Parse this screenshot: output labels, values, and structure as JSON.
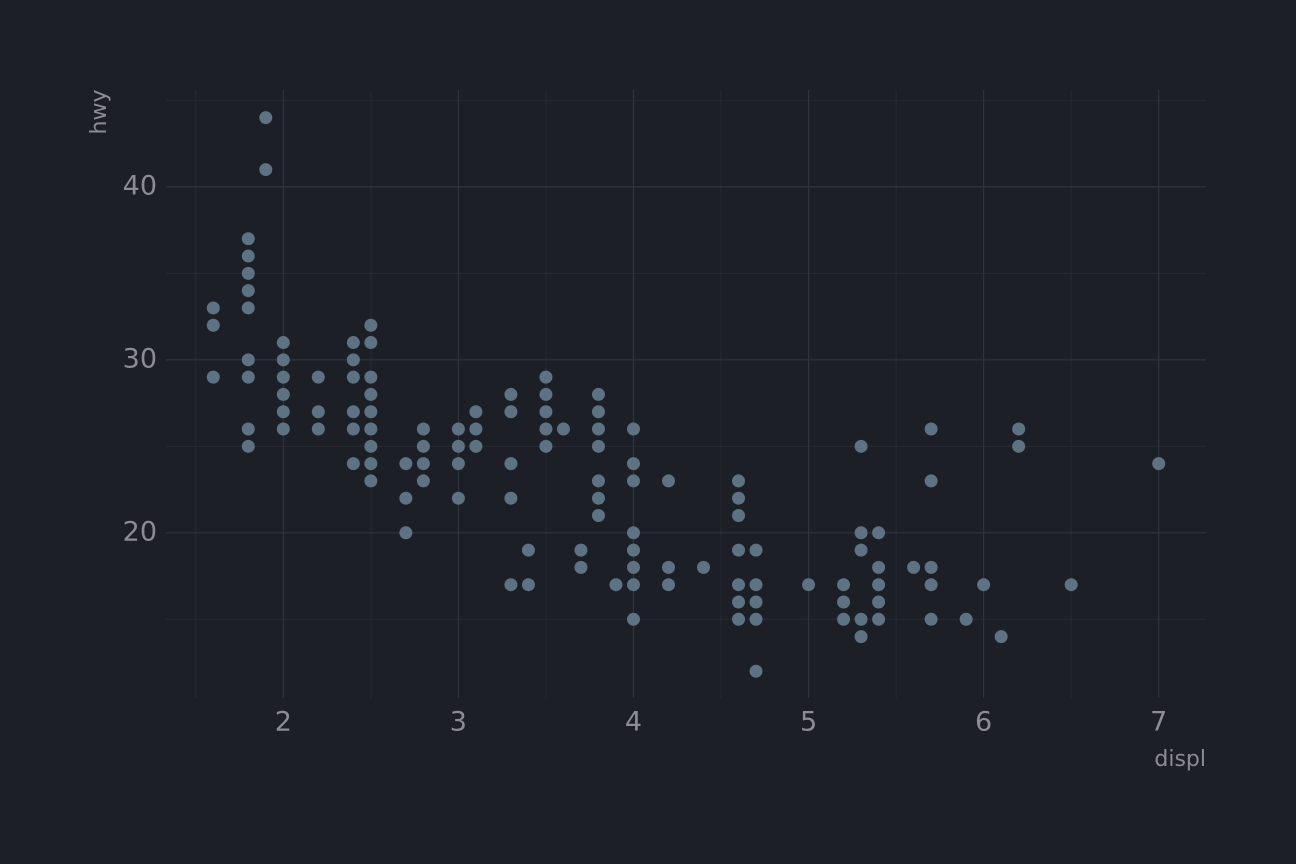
{
  "chart_data": {
    "type": "scatter",
    "x_label": "displ",
    "y_label": "hwy",
    "x": [
      1.6,
      1.6,
      1.6,
      1.8,
      1.8,
      1.8,
      1.8,
      1.8,
      1.8,
      1.8,
      1.8,
      1.8,
      1.9,
      1.9,
      2.0,
      2.0,
      2.0,
      2.0,
      2.0,
      2.0,
      2.2,
      2.2,
      2.2,
      2.4,
      2.4,
      2.4,
      2.4,
      2.4,
      2.4,
      2.5,
      2.5,
      2.5,
      2.5,
      2.5,
      2.5,
      2.5,
      2.5,
      2.5,
      2.7,
      2.7,
      2.7,
      2.8,
      2.8,
      2.8,
      2.8,
      3.0,
      3.0,
      3.0,
      3.0,
      3.1,
      3.1,
      3.1,
      3.3,
      3.3,
      3.3,
      3.3,
      3.3,
      3.4,
      3.4,
      3.5,
      3.5,
      3.5,
      3.5,
      3.5,
      3.6,
      3.7,
      3.7,
      3.8,
      3.8,
      3.8,
      3.8,
      3.8,
      3.8,
      3.8,
      3.9,
      4.0,
      4.0,
      4.0,
      4.0,
      4.0,
      4.0,
      4.0,
      4.0,
      4.2,
      4.2,
      4.2,
      4.4,
      4.6,
      4.6,
      4.6,
      4.6,
      4.6,
      4.6,
      4.6,
      4.7,
      4.7,
      4.7,
      4.7,
      4.7,
      5.0,
      5.2,
      5.2,
      5.2,
      5.3,
      5.3,
      5.3,
      5.3,
      5.3,
      5.4,
      5.4,
      5.4,
      5.4,
      5.4,
      5.6,
      5.7,
      5.7,
      5.7,
      5.7,
      5.7,
      5.9,
      6.0,
      6.1,
      6.2,
      6.2,
      6.5,
      7.0
    ],
    "values": [
      33,
      32,
      29,
      37,
      36,
      35,
      34,
      33,
      30,
      29,
      26,
      25,
      44,
      41,
      31,
      30,
      29,
      28,
      27,
      26,
      29,
      27,
      26,
      31,
      30,
      29,
      27,
      26,
      24,
      32,
      31,
      29,
      28,
      27,
      26,
      25,
      24,
      23,
      24,
      22,
      20,
      26,
      25,
      24,
      23,
      26,
      25,
      24,
      22,
      27,
      26,
      25,
      28,
      27,
      24,
      22,
      17,
      19,
      17,
      29,
      28,
      27,
      26,
      25,
      26,
      19,
      18,
      28,
      27,
      26,
      25,
      23,
      22,
      21,
      17,
      26,
      24,
      23,
      20,
      19,
      18,
      17,
      15,
      23,
      18,
      17,
      18,
      23,
      22,
      21,
      19,
      17,
      16,
      15,
      19,
      17,
      16,
      15,
      12,
      17,
      17,
      16,
      15,
      25,
      20,
      19,
      15,
      14,
      20,
      18,
      17,
      16,
      15,
      18,
      26,
      23,
      18,
      17,
      15,
      15,
      17,
      14,
      26,
      25,
      17,
      24
    ],
    "color": "#5d7282",
    "xlim": [
      1.33,
      7.27
    ],
    "ylim": [
      10.45,
      45.6
    ],
    "xticks": [
      2,
      3,
      4,
      5,
      6,
      7
    ],
    "yticks": [
      20,
      30,
      40
    ],
    "xminor": [
      1.5,
      2.5,
      3.5,
      4.5,
      5.5,
      6.5
    ],
    "yminor": [
      15,
      25,
      35,
      45
    ],
    "grid": true
  }
}
